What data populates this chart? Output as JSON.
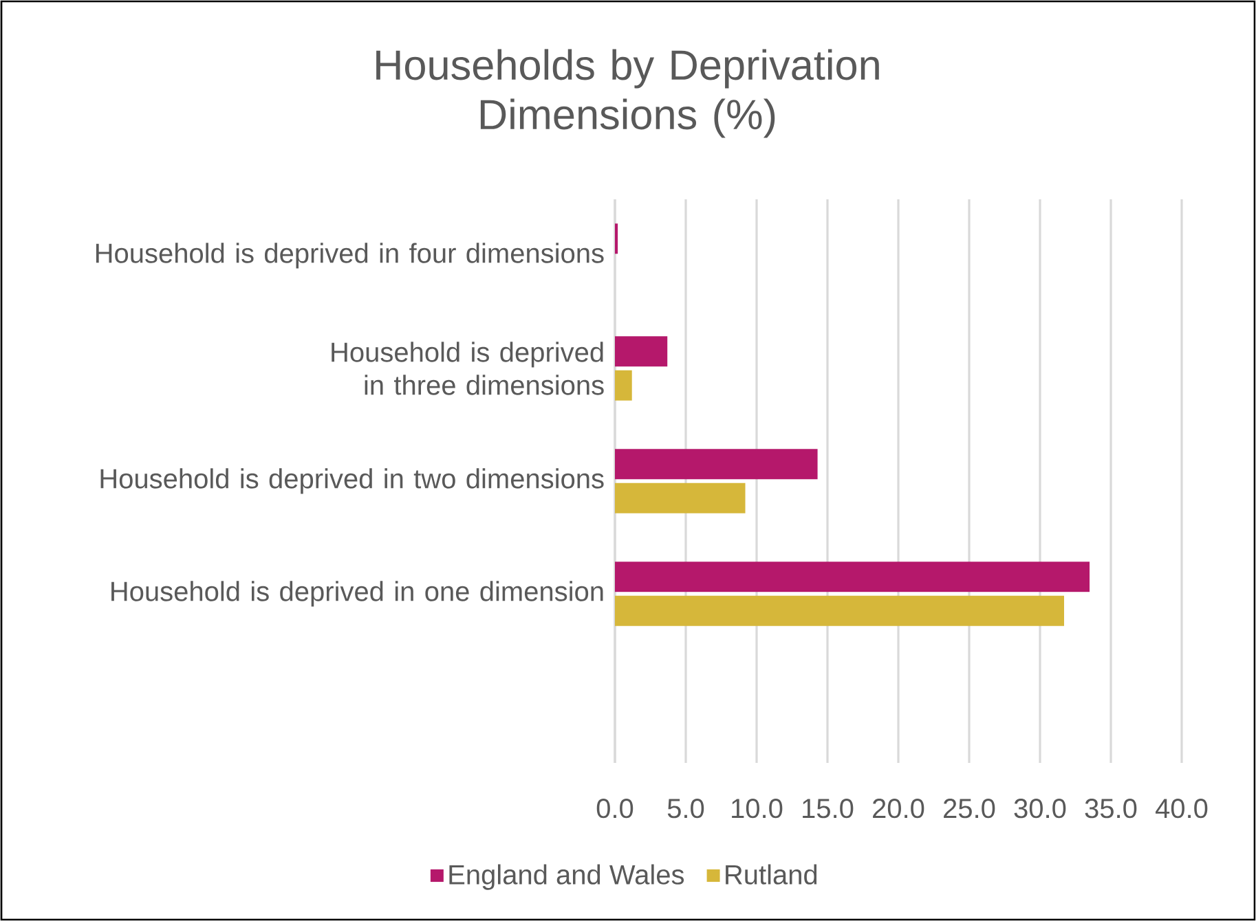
{
  "chart_data": {
    "type": "bar",
    "orientation": "horizontal",
    "title": "Households by Deprivation Dimensions (%)",
    "categories": [
      "Household is deprived in four dimensions",
      "Household is deprived in three dimensions",
      "Household is deprived in two dimensions",
      "Household is deprived in one dimension",
      null
    ],
    "series": [
      {
        "name": "England and Wales",
        "color": "#b5186b",
        "values": [
          0.2,
          3.7,
          14.3,
          33.5,
          null
        ]
      },
      {
        "name": "Rutland",
        "color": "#d6b73a",
        "values": [
          null,
          1.2,
          9.2,
          31.7,
          null
        ]
      }
    ],
    "xlim": [
      0,
      40
    ],
    "xticks": [
      {
        "value": 0,
        "label": "0.0"
      },
      {
        "value": 5,
        "label": "5.0"
      },
      {
        "value": 10,
        "label": "10.0"
      },
      {
        "value": 15,
        "label": "15.0"
      },
      {
        "value": 20,
        "label": "20.0"
      },
      {
        "value": 25,
        "label": "25.0"
      },
      {
        "value": 30,
        "label": "30.0"
      },
      {
        "value": 35,
        "label": "35.0"
      },
      {
        "value": 40,
        "label": "40.0"
      }
    ],
    "grid": "x",
    "legend": "bottom"
  }
}
